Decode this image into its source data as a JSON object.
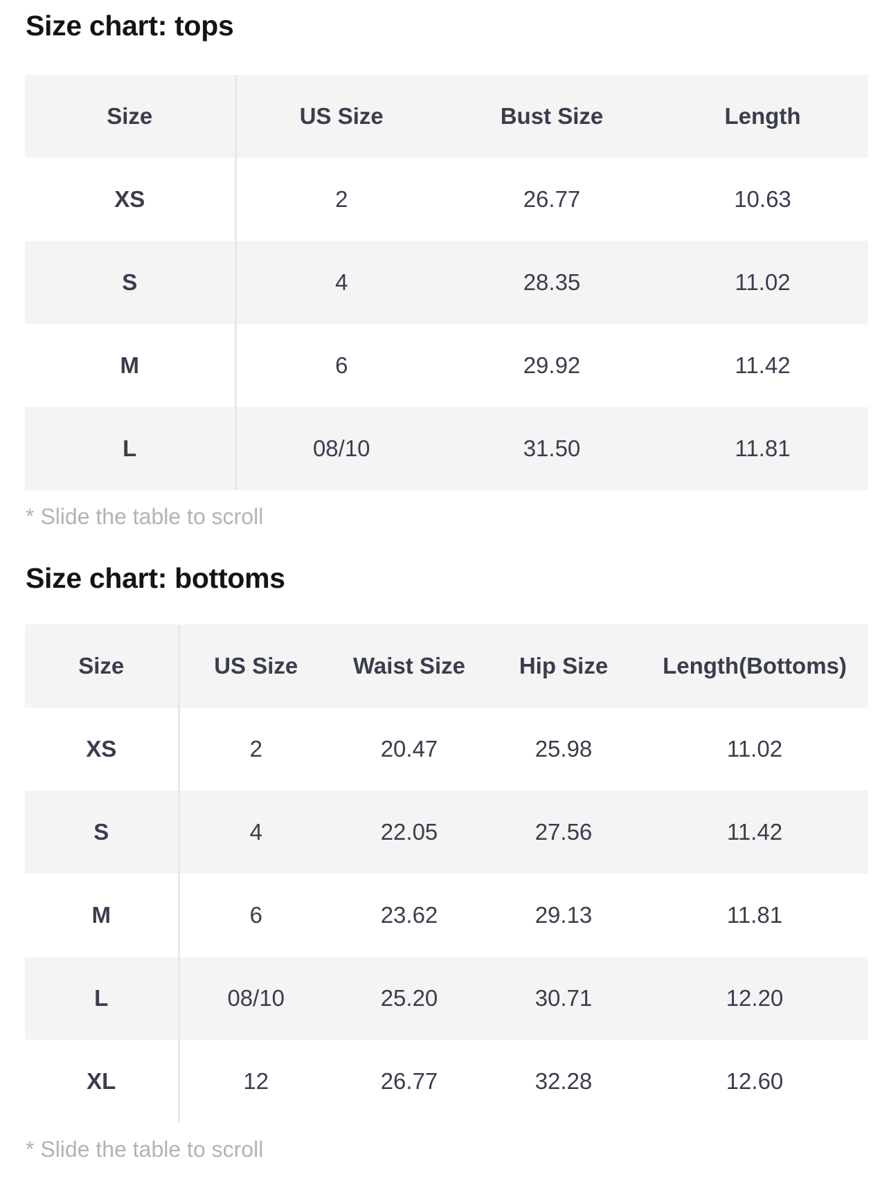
{
  "tops": {
    "title": "Size chart: tops",
    "headers": [
      "Size",
      "US Size",
      "Bust Size",
      "Length"
    ],
    "rows": [
      [
        "XS",
        "2",
        "26.77",
        "10.63"
      ],
      [
        "S",
        "4",
        "28.35",
        "11.02"
      ],
      [
        "M",
        "6",
        "29.92",
        "11.42"
      ],
      [
        "L",
        "08/10",
        "31.50",
        "11.81"
      ]
    ],
    "note": "* Slide the table to scroll"
  },
  "bottoms": {
    "title": "Size chart: bottoms",
    "headers": [
      "Size",
      "US Size",
      "Waist Size",
      "Hip Size",
      "Length(Bottoms)"
    ],
    "rows": [
      [
        "XS",
        "2",
        "20.47",
        "25.98",
        "11.02"
      ],
      [
        "S",
        "4",
        "22.05",
        "27.56",
        "11.42"
      ],
      [
        "M",
        "6",
        "23.62",
        "29.13",
        "11.81"
      ],
      [
        "L",
        "08/10",
        "25.20",
        "30.71",
        "12.20"
      ],
      [
        "XL",
        "12",
        "26.77",
        "32.28",
        "12.60"
      ]
    ],
    "note": "* Slide the table to scroll"
  },
  "colors": {
    "header_bg": "#f4f4f4",
    "text": "#3a3d4c",
    "note": "#b3b3b3"
  }
}
